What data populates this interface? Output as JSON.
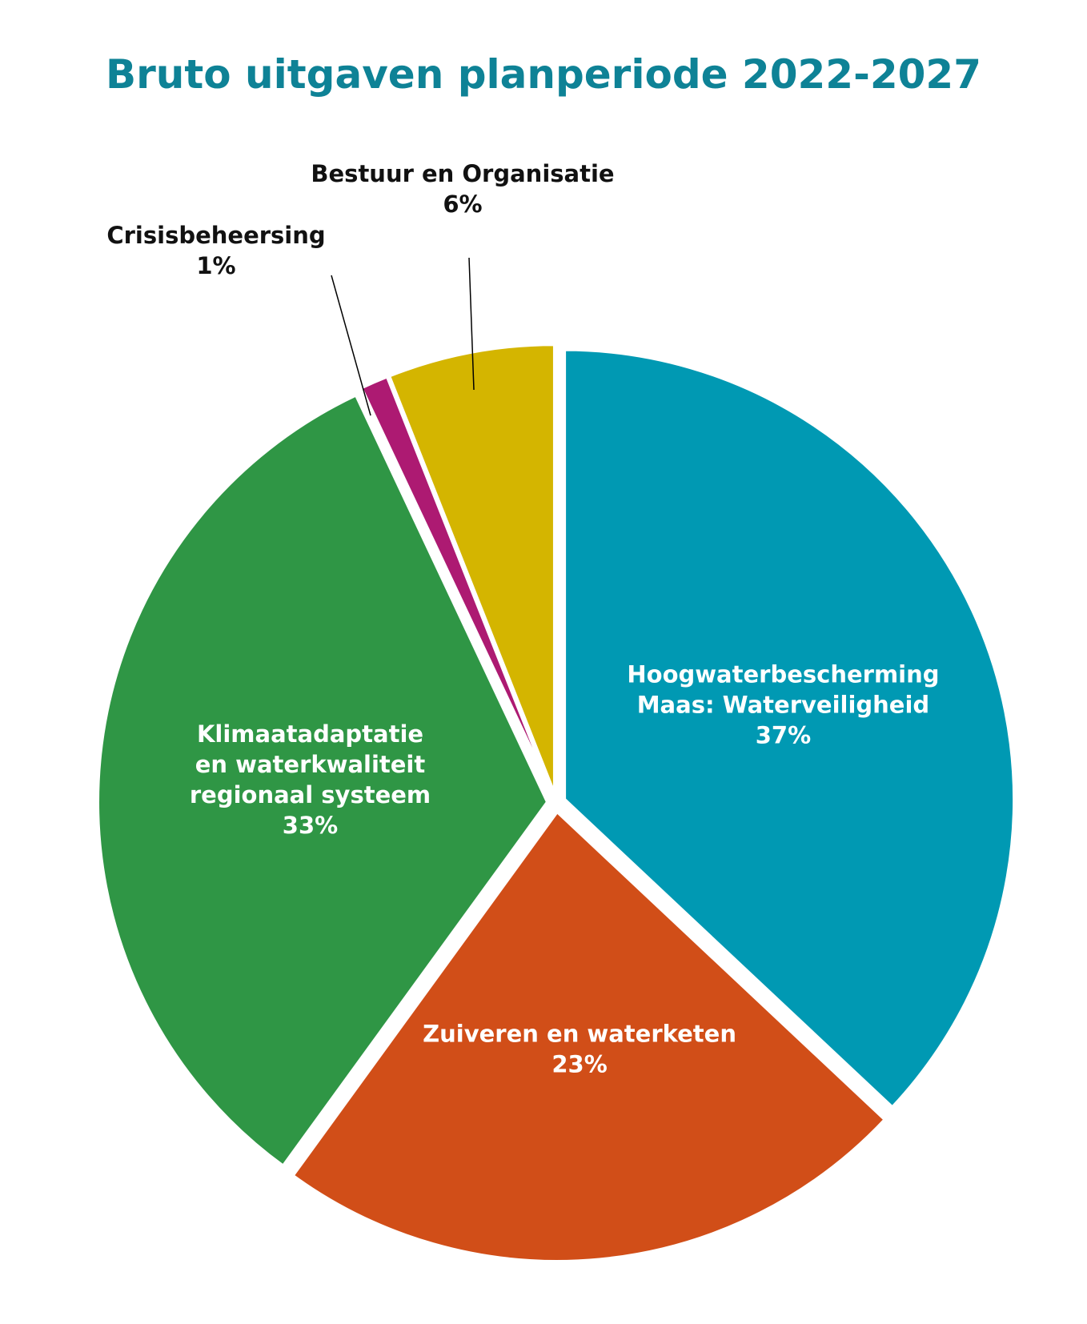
{
  "colors": {
    "title": "#0E8296",
    "background": "#FFFFFF",
    "leader_line": "#000000"
  },
  "chart_data": {
    "type": "pie",
    "title": "Bruto uitgaven planperiode 2022-2027",
    "unit": "%",
    "legend": "none",
    "slices": [
      {
        "label_lines": [
          "Hoogwaterbescherming",
          "Maas: Waterveiligheid"
        ],
        "value": 37,
        "value_label": "37%",
        "color": "#0099B3",
        "label_position": "inside"
      },
      {
        "label_lines": [
          "Zuiveren en waterketen"
        ],
        "value": 23,
        "value_label": "23%",
        "color": "#D14E18",
        "label_position": "inside"
      },
      {
        "label_lines": [
          "Klimaatadaptatie",
          "en waterkwaliteit",
          "regionaal systeem"
        ],
        "value": 33,
        "value_label": "33%",
        "color": "#2F9645",
        "label_position": "inside"
      },
      {
        "label_lines": [
          "Crisisbeheersing"
        ],
        "value": 1,
        "value_label": "1%",
        "color": "#AD1A72",
        "label_position": "outside-with-leader"
      },
      {
        "label_lines": [
          "Bestuur en Organisatie"
        ],
        "value": 6,
        "value_label": "6%",
        "color": "#D4B500",
        "label_position": "outside-with-leader"
      }
    ]
  }
}
